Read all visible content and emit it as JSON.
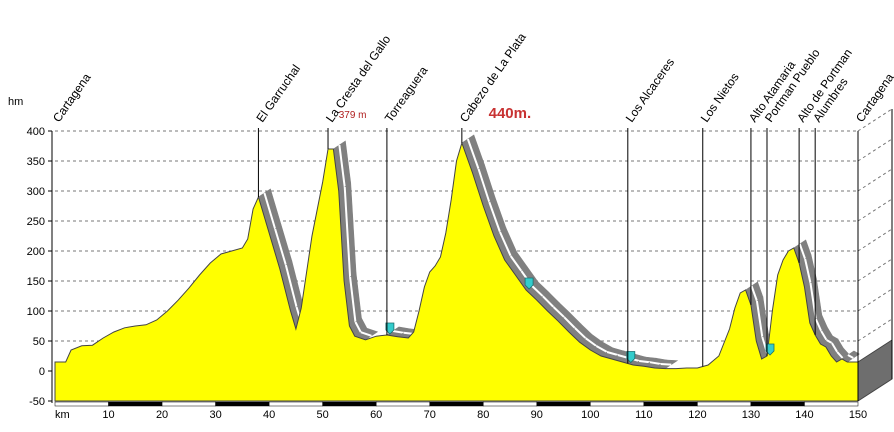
{
  "chart_data": {
    "type": "area",
    "title": "",
    "ylabel": "hm",
    "xlabel": "km",
    "xlim": [
      0,
      150
    ],
    "ylim": [
      -50,
      400
    ],
    "grid": true,
    "x_ticks": [
      10,
      20,
      30,
      40,
      50,
      60,
      70,
      80,
      90,
      100,
      110,
      120,
      130,
      140,
      150
    ],
    "y_ticks": [
      -50,
      0,
      50,
      100,
      150,
      200,
      250,
      300,
      350,
      400
    ],
    "profile": [
      [
        0,
        15
      ],
      [
        2,
        15
      ],
      [
        3,
        35
      ],
      [
        5,
        42
      ],
      [
        7,
        43
      ],
      [
        9,
        55
      ],
      [
        11,
        65
      ],
      [
        13,
        72
      ],
      [
        15,
        75
      ],
      [
        17,
        77
      ],
      [
        19,
        85
      ],
      [
        21,
        100
      ],
      [
        23,
        118
      ],
      [
        25,
        138
      ],
      [
        27,
        160
      ],
      [
        29,
        180
      ],
      [
        31,
        195
      ],
      [
        33,
        200
      ],
      [
        35,
        205
      ],
      [
        36,
        220
      ],
      [
        37,
        270
      ],
      [
        38,
        290
      ],
      [
        40,
        230
      ],
      [
        42,
        170
      ],
      [
        44,
        100
      ],
      [
        45,
        70
      ],
      [
        46,
        105
      ],
      [
        48,
        225
      ],
      [
        50,
        315
      ],
      [
        51,
        370
      ],
      [
        52,
        370
      ],
      [
        53,
        300
      ],
      [
        54,
        150
      ],
      [
        55,
        75
      ],
      [
        56,
        58
      ],
      [
        58,
        52
      ],
      [
        60,
        58
      ],
      [
        62,
        60
      ],
      [
        64,
        57
      ],
      [
        66,
        55
      ],
      [
        67,
        65
      ],
      [
        68,
        100
      ],
      [
        69,
        140
      ],
      [
        70,
        165
      ],
      [
        71,
        175
      ],
      [
        72,
        190
      ],
      [
        73,
        230
      ],
      [
        74,
        285
      ],
      [
        75,
        350
      ],
      [
        76,
        380
      ],
      [
        78,
        330
      ],
      [
        80,
        275
      ],
      [
        82,
        225
      ],
      [
        84,
        185
      ],
      [
        86,
        160
      ],
      [
        88,
        135
      ],
      [
        90,
        118
      ],
      [
        92,
        100
      ],
      [
        94,
        83
      ],
      [
        96,
        65
      ],
      [
        98,
        48
      ],
      [
        100,
        35
      ],
      [
        102,
        25
      ],
      [
        104,
        20
      ],
      [
        106,
        15
      ],
      [
        108,
        10
      ],
      [
        110,
        8
      ],
      [
        112,
        5
      ],
      [
        114,
        4
      ],
      [
        116,
        4
      ],
      [
        118,
        5
      ],
      [
        120,
        5
      ],
      [
        122,
        10
      ],
      [
        124,
        25
      ],
      [
        126,
        70
      ],
      [
        127,
        105
      ],
      [
        128,
        130
      ],
      [
        129,
        135
      ],
      [
        130,
        110
      ],
      [
        131,
        50
      ],
      [
        132,
        20
      ],
      [
        133,
        25
      ],
      [
        134,
        100
      ],
      [
        135,
        160
      ],
      [
        136,
        185
      ],
      [
        137,
        200
      ],
      [
        138,
        205
      ],
      [
        139,
        180
      ],
      [
        140,
        140
      ],
      [
        141,
        80
      ],
      [
        142,
        60
      ],
      [
        143,
        45
      ],
      [
        144,
        40
      ],
      [
        145,
        25
      ],
      [
        146,
        15
      ],
      [
        147,
        20
      ],
      [
        148,
        15
      ],
      [
        150,
        15
      ]
    ],
    "places": [
      {
        "label": "Cartagena",
        "km": 0
      },
      {
        "label": "El Garruchal",
        "km": 38
      },
      {
        "label": "La Cresta del Gallo",
        "km": 51
      },
      {
        "label": "Torreaguera",
        "km": 62
      },
      {
        "label": "Cabezo de La Plata",
        "km": 76
      },
      {
        "label": "Los Alcaceres",
        "km": 107
      },
      {
        "label": "Los Nietos",
        "km": 121
      },
      {
        "label": "Alto Atamaria",
        "km": 130
      },
      {
        "label": "Portman Pueblo",
        "km": 133
      },
      {
        "label": "Alto de Portman",
        "km": 139
      },
      {
        "label": "Alumbres",
        "km": 142
      },
      {
        "label": "Cartagena",
        "km": 150
      }
    ],
    "peak_labels": [
      {
        "text": "379 m",
        "km": 53,
        "color": "#b02020"
      },
      {
        "text": "440m.",
        "km": 81,
        "color": "#c83232"
      }
    ],
    "markers_km": [
      62,
      88,
      107,
      133
    ],
    "colors": {
      "fill": "#ffff00",
      "outline": "#444444",
      "slope": "#808080",
      "slope_highlight": "#ffffff",
      "marker": "#33cccc"
    }
  }
}
